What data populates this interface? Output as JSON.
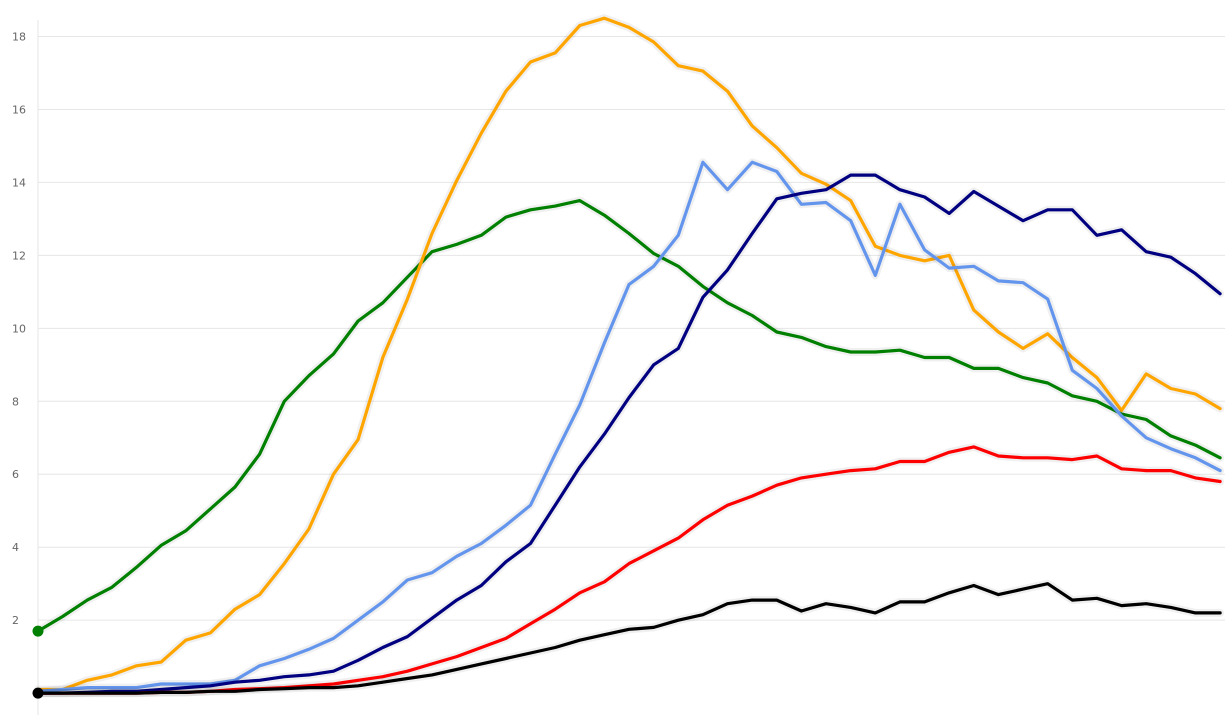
{
  "chart_data": {
    "type": "line",
    "title": "",
    "xlabel": "",
    "ylabel": "",
    "x": [
      0,
      1,
      2,
      3,
      4,
      5,
      6,
      7,
      8,
      9,
      10,
      11,
      12,
      13,
      14,
      15,
      16,
      17,
      18,
      19,
      20,
      21,
      22,
      23,
      24,
      25,
      26,
      27,
      28,
      29,
      30,
      31,
      32,
      33,
      34,
      35,
      36,
      37,
      38,
      39,
      40,
      41,
      42,
      43,
      44,
      45,
      46,
      47,
      48
    ],
    "xlim": [
      0,
      48.2
    ],
    "ylim": [
      -0.6,
      19.0
    ],
    "y_ticks": [
      2,
      4,
      6,
      8,
      10,
      12,
      14,
      16,
      18
    ],
    "y_tick_labels": [
      "2",
      "4",
      "6",
      "8",
      "10",
      "12",
      "14",
      "16",
      "18"
    ],
    "grid": true,
    "legend": "none",
    "series": [
      {
        "color": "#008000",
        "marker_at_start": true,
        "values": [
          1.7,
          2.1,
          2.55,
          2.9,
          3.45,
          4.05,
          4.45,
          5.05,
          5.65,
          6.55,
          8.0,
          8.7,
          9.3,
          10.2,
          10.7,
          11.4,
          12.1,
          12.3,
          12.55,
          13.05,
          13.25,
          13.35,
          13.5,
          13.1,
          12.6,
          12.05,
          11.7,
          11.15,
          10.7,
          10.35,
          9.9,
          9.75,
          9.5,
          9.35,
          9.35,
          9.4,
          9.2,
          9.2,
          8.9,
          8.9,
          8.65,
          8.5,
          8.15,
          8.0,
          7.65,
          7.5,
          7.05,
          6.8,
          6.45
        ]
      },
      {
        "color": "#ffa500",
        "values": [
          0.1,
          0.1,
          0.35,
          0.5,
          0.75,
          0.85,
          1.45,
          1.65,
          2.3,
          2.7,
          3.55,
          4.5,
          6.0,
          6.95,
          9.2,
          10.8,
          12.6,
          14.05,
          15.35,
          16.5,
          17.3,
          17.55,
          18.3,
          18.5,
          18.25,
          17.85,
          17.2,
          17.05,
          16.5,
          15.55,
          14.95,
          14.25,
          13.95,
          13.5,
          12.25,
          12.0,
          11.85,
          12.0,
          10.5,
          9.9,
          9.45,
          9.85,
          9.2,
          8.65,
          7.75,
          8.75,
          8.35,
          8.2,
          7.8
        ]
      },
      {
        "color": "#6495ed",
        "values": [
          0.05,
          0.1,
          0.15,
          0.15,
          0.15,
          0.25,
          0.25,
          0.25,
          0.35,
          0.75,
          0.95,
          1.2,
          1.5,
          2.0,
          2.5,
          3.1,
          3.3,
          3.75,
          4.1,
          4.6,
          5.15,
          6.55,
          7.9,
          9.6,
          11.2,
          11.7,
          12.55,
          14.55,
          13.8,
          14.55,
          14.3,
          13.4,
          13.45,
          12.95,
          11.45,
          13.4,
          12.15,
          11.65,
          11.7,
          11.3,
          11.25,
          10.8,
          8.85,
          8.35,
          7.6,
          7.0,
          6.7,
          6.45,
          6.1
        ]
      },
      {
        "color": "#000080",
        "values": [
          0.0,
          0.0,
          0.02,
          0.05,
          0.05,
          0.1,
          0.15,
          0.2,
          0.3,
          0.35,
          0.45,
          0.5,
          0.6,
          0.9,
          1.25,
          1.55,
          2.05,
          2.55,
          2.95,
          3.6,
          4.1,
          5.15,
          6.2,
          7.1,
          8.1,
          9.0,
          9.45,
          10.85,
          11.6,
          12.6,
          13.55,
          13.7,
          13.8,
          14.2,
          14.2,
          13.8,
          13.6,
          13.15,
          13.75,
          13.35,
          12.95,
          13.25,
          13.25,
          12.55,
          12.7,
          12.1,
          11.95,
          11.5,
          10.95
        ]
      },
      {
        "color": "#ff0000",
        "values": [
          0.0,
          0.0,
          0.0,
          0.0,
          0.0,
          0.02,
          0.02,
          0.05,
          0.1,
          0.12,
          0.15,
          0.2,
          0.25,
          0.35,
          0.45,
          0.6,
          0.8,
          1.0,
          1.25,
          1.5,
          1.9,
          2.3,
          2.75,
          3.05,
          3.55,
          3.9,
          4.25,
          4.75,
          5.15,
          5.4,
          5.7,
          5.9,
          6.0,
          6.1,
          6.15,
          6.35,
          6.35,
          6.6,
          6.75,
          6.5,
          6.45,
          6.45,
          6.4,
          6.5,
          6.15,
          6.1,
          6.1,
          5.9,
          5.8
        ]
      },
      {
        "color": "#000000",
        "marker_at_start": true,
        "values": [
          0.0,
          0.0,
          0.0,
          0.0,
          0.0,
          0.02,
          0.02,
          0.05,
          0.05,
          0.1,
          0.12,
          0.15,
          0.15,
          0.2,
          0.3,
          0.4,
          0.5,
          0.65,
          0.8,
          0.95,
          1.1,
          1.25,
          1.45,
          1.6,
          1.75,
          1.8,
          2.0,
          2.15,
          2.45,
          2.55,
          2.55,
          2.25,
          2.45,
          2.35,
          2.2,
          2.5,
          2.5,
          2.75,
          2.95,
          2.7,
          2.85,
          3.0,
          2.55,
          2.6,
          2.4,
          2.45,
          2.35,
          2.2,
          2.2
        ]
      }
    ]
  }
}
